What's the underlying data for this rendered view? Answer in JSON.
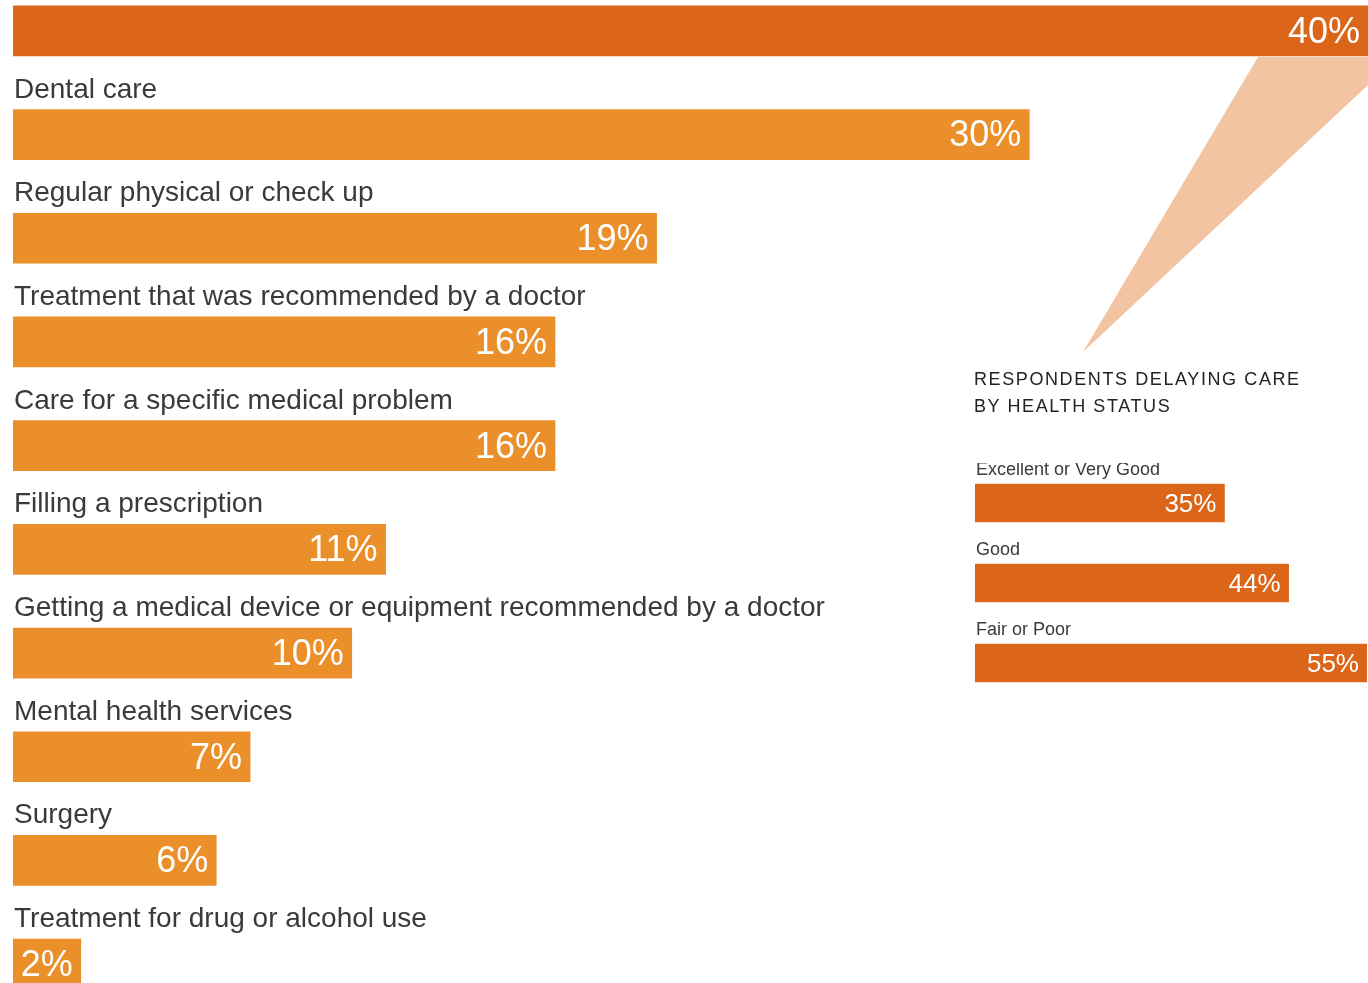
{
  "chart_data": [
    {
      "type": "bar",
      "orientation": "horizontal",
      "legend": false,
      "categories": [
        null,
        "Dental care",
        "Regular physical or check up",
        "Treatment that was recommended by a doctor",
        "Care for a specific medical problem",
        "Filling a prescription",
        "Getting a medical device or equipment recommended by a doctor",
        "Mental health services",
        "Surgery",
        "Treatment for drug or alcohol use"
      ],
      "values": [
        40,
        30,
        19,
        16,
        16,
        11,
        10,
        7,
        6,
        2
      ],
      "value_labels": [
        "40%",
        "30%",
        "19%",
        "16%",
        "16%",
        "11%",
        "10%",
        "7%",
        "6%",
        "2%"
      ],
      "colors": [
        "#db6619",
        "#eb8f2a",
        "#eb8f2a",
        "#eb8f2a",
        "#eb8f2a",
        "#eb8f2a",
        "#eb8f2a",
        "#eb8f2a",
        "#eb8f2a",
        "#eb8f2a"
      ]
    },
    {
      "type": "bar",
      "orientation": "horizontal",
      "legend": false,
      "title": "RESPONDENTS DELAYING CARE BY HEALTH STATUS",
      "categories": [
        "Excellent or Very Good",
        "Good",
        "Fair or Poor"
      ],
      "values": [
        35,
        44,
        55
      ],
      "value_labels": [
        "35%",
        "44%",
        "55%"
      ],
      "colors": [
        "#db6619",
        "#db6619",
        "#db6619"
      ]
    }
  ]
}
